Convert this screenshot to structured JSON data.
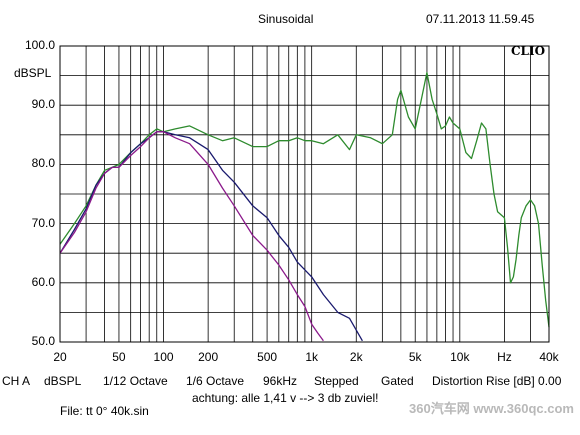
{
  "header": {
    "mode": "Sinusoidal",
    "timestamp": "07.11.2013 11.59.45",
    "brand": "CLIO"
  },
  "footer": {
    "line1": [
      "CH A",
      "dBSPL",
      "1/12 Octave",
      "1/6 Octave",
      "96kHz",
      "Stepped",
      "Gated",
      "Distortion Rise [dB] 0.00"
    ],
    "line2": "achtung: alle 1,41 v --> 3 db zuviel!",
    "line3": "File: tt 0° 40k.sin",
    "watermark": "360汽车网 www.360qc.com"
  },
  "chart_data": {
    "type": "line",
    "title": "",
    "xlabel": "Hz",
    "ylabel": "dBSPL",
    "x_scale": "log",
    "xlim": [
      20,
      40000
    ],
    "ylim": [
      50,
      100
    ],
    "grid": true,
    "legend": "none",
    "x_ticks": [
      {
        "v": 20,
        "label": "20"
      },
      {
        "v": 50,
        "label": "50"
      },
      {
        "v": 100,
        "label": "100"
      },
      {
        "v": 200,
        "label": "200"
      },
      {
        "v": 500,
        "label": "500"
      },
      {
        "v": 1000,
        "label": "1k"
      },
      {
        "v": 2000,
        "label": "2k"
      },
      {
        "v": 5000,
        "label": "5k"
      },
      {
        "v": 10000,
        "label": "10k"
      },
      {
        "v": 20000,
        "label": "Hz"
      },
      {
        "v": 40000,
        "label": "40k"
      }
    ],
    "y_ticks": [
      {
        "v": 100,
        "label": "100.0"
      },
      {
        "v": 90,
        "label": "90.0"
      },
      {
        "v": 80,
        "label": "80.0"
      },
      {
        "v": 70,
        "label": "70.0"
      },
      {
        "v": 60,
        "label": "60.0"
      },
      {
        "v": 50,
        "label": "50.0"
      }
    ],
    "series": [
      {
        "color": "#2e8b2e",
        "points": [
          [
            20,
            66.5
          ],
          [
            25,
            70
          ],
          [
            30,
            73
          ],
          [
            35,
            76.5
          ],
          [
            40,
            79
          ],
          [
            45,
            79.5
          ],
          [
            50,
            80
          ],
          [
            60,
            82
          ],
          [
            70,
            83.5
          ],
          [
            80,
            85
          ],
          [
            90,
            86
          ],
          [
            100,
            85.5
          ],
          [
            120,
            86
          ],
          [
            150,
            86.5
          ],
          [
            200,
            85
          ],
          [
            250,
            84
          ],
          [
            300,
            84.5
          ],
          [
            400,
            83
          ],
          [
            500,
            83
          ],
          [
            600,
            84
          ],
          [
            700,
            84
          ],
          [
            800,
            84.5
          ],
          [
            900,
            84
          ],
          [
            1000,
            84
          ],
          [
            1200,
            83.5
          ],
          [
            1500,
            85
          ],
          [
            1800,
            82.5
          ],
          [
            2000,
            85
          ],
          [
            2500,
            84.5
          ],
          [
            3000,
            83.5
          ],
          [
            3500,
            85
          ],
          [
            3800,
            91
          ],
          [
            4000,
            92.5
          ],
          [
            4500,
            88
          ],
          [
            5000,
            86
          ],
          [
            5500,
            91
          ],
          [
            6000,
            95.5
          ],
          [
            6500,
            91
          ],
          [
            7000,
            88.5
          ],
          [
            7500,
            86
          ],
          [
            8000,
            86.5
          ],
          [
            8500,
            88
          ],
          [
            9000,
            87
          ],
          [
            10000,
            86
          ],
          [
            11000,
            82
          ],
          [
            12000,
            81
          ],
          [
            13000,
            84
          ],
          [
            14000,
            87
          ],
          [
            15000,
            86
          ],
          [
            16000,
            80
          ],
          [
            17000,
            75
          ],
          [
            18000,
            72
          ],
          [
            20000,
            71
          ],
          [
            21000,
            66
          ],
          [
            22000,
            60
          ],
          [
            23000,
            61
          ],
          [
            24000,
            64
          ],
          [
            25000,
            68
          ],
          [
            26000,
            71
          ],
          [
            28000,
            73
          ],
          [
            30000,
            74
          ],
          [
            32000,
            73
          ],
          [
            34000,
            70
          ],
          [
            36000,
            63
          ],
          [
            38000,
            57
          ],
          [
            40000,
            52.5
          ]
        ]
      },
      {
        "color": "#1a1a6e",
        "points": [
          [
            20,
            65
          ],
          [
            25,
            69
          ],
          [
            30,
            72.5
          ],
          [
            35,
            76.5
          ],
          [
            40,
            78.5
          ],
          [
            45,
            79.5
          ],
          [
            50,
            79.5
          ],
          [
            60,
            82
          ],
          [
            70,
            83.5
          ],
          [
            80,
            84.5
          ],
          [
            90,
            85.5
          ],
          [
            100,
            85.5
          ],
          [
            120,
            85
          ],
          [
            150,
            84.5
          ],
          [
            200,
            82.5
          ],
          [
            250,
            79
          ],
          [
            300,
            77
          ],
          [
            400,
            73
          ],
          [
            500,
            71
          ],
          [
            600,
            68
          ],
          [
            700,
            66
          ],
          [
            800,
            63.5
          ],
          [
            1000,
            61
          ],
          [
            1200,
            58
          ],
          [
            1500,
            55
          ],
          [
            1800,
            54
          ],
          [
            2000,
            52
          ],
          [
            2200,
            50.2
          ]
        ]
      },
      {
        "color": "#8b1a8b",
        "points": [
          [
            20,
            65
          ],
          [
            25,
            68.5
          ],
          [
            30,
            72
          ],
          [
            35,
            76
          ],
          [
            40,
            78.5
          ],
          [
            45,
            79.5
          ],
          [
            50,
            79.5
          ],
          [
            60,
            81.5
          ],
          [
            70,
            83
          ],
          [
            80,
            84.5
          ],
          [
            90,
            85.5
          ],
          [
            100,
            85.5
          ],
          [
            120,
            84.5
          ],
          [
            150,
            83.5
          ],
          [
            200,
            80
          ],
          [
            250,
            76
          ],
          [
            300,
            73
          ],
          [
            400,
            68
          ],
          [
            500,
            65.5
          ],
          [
            600,
            63
          ],
          [
            700,
            60.5
          ],
          [
            800,
            58
          ],
          [
            900,
            56
          ],
          [
            1000,
            53
          ],
          [
            1100,
            51.5
          ],
          [
            1200,
            50.2
          ]
        ]
      }
    ]
  }
}
